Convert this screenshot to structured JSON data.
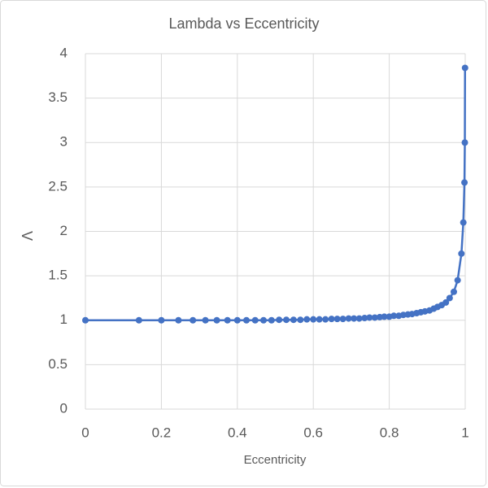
{
  "chart_data": {
    "type": "scatter",
    "title": "Lambda vs Eccentricity",
    "x_label": "Eccentricity",
    "y_label": "Λ",
    "xlim": [
      0,
      1
    ],
    "xticks": [
      0,
      0.2,
      0.4,
      0.6,
      0.8,
      1
    ],
    "ylim": [
      0,
      4
    ],
    "yticks": [
      0,
      0.5,
      1,
      1.5,
      2,
      2.5,
      3,
      3.5,
      4
    ],
    "grid": true,
    "color": "#4472c4",
    "x": [
      0,
      0.141,
      0.2,
      0.245,
      0.283,
      0.316,
      0.346,
      0.374,
      0.4,
      0.424,
      0.447,
      0.469,
      0.49,
      0.51,
      0.529,
      0.548,
      0.566,
      0.583,
      0.6,
      0.616,
      0.632,
      0.648,
      0.663,
      0.678,
      0.693,
      0.707,
      0.721,
      0.735,
      0.748,
      0.762,
      0.775,
      0.787,
      0.8,
      0.812,
      0.825,
      0.837,
      0.849,
      0.86,
      0.872,
      0.883,
      0.894,
      0.906,
      0.917,
      0.927,
      0.938,
      0.949,
      0.959,
      0.97,
      0.98,
      0.99,
      0.995,
      0.998,
      0.999,
      0.9995
    ],
    "values": [
      1,
      1,
      1,
      1,
      1,
      1,
      1,
      1,
      1,
      1,
      1,
      1,
      1,
      1.005,
      1.005,
      1.005,
      1.005,
      1.01,
      1.01,
      1.01,
      1.01,
      1.015,
      1.015,
      1.015,
      1.02,
      1.02,
      1.02,
      1.025,
      1.03,
      1.03,
      1.035,
      1.04,
      1.04,
      1.05,
      1.05,
      1.06,
      1.065,
      1.07,
      1.08,
      1.09,
      1.1,
      1.11,
      1.13,
      1.15,
      1.17,
      1.2,
      1.25,
      1.32,
      1.45,
      1.75,
      2.1,
      2.55,
      3.0,
      3.84
    ]
  }
}
